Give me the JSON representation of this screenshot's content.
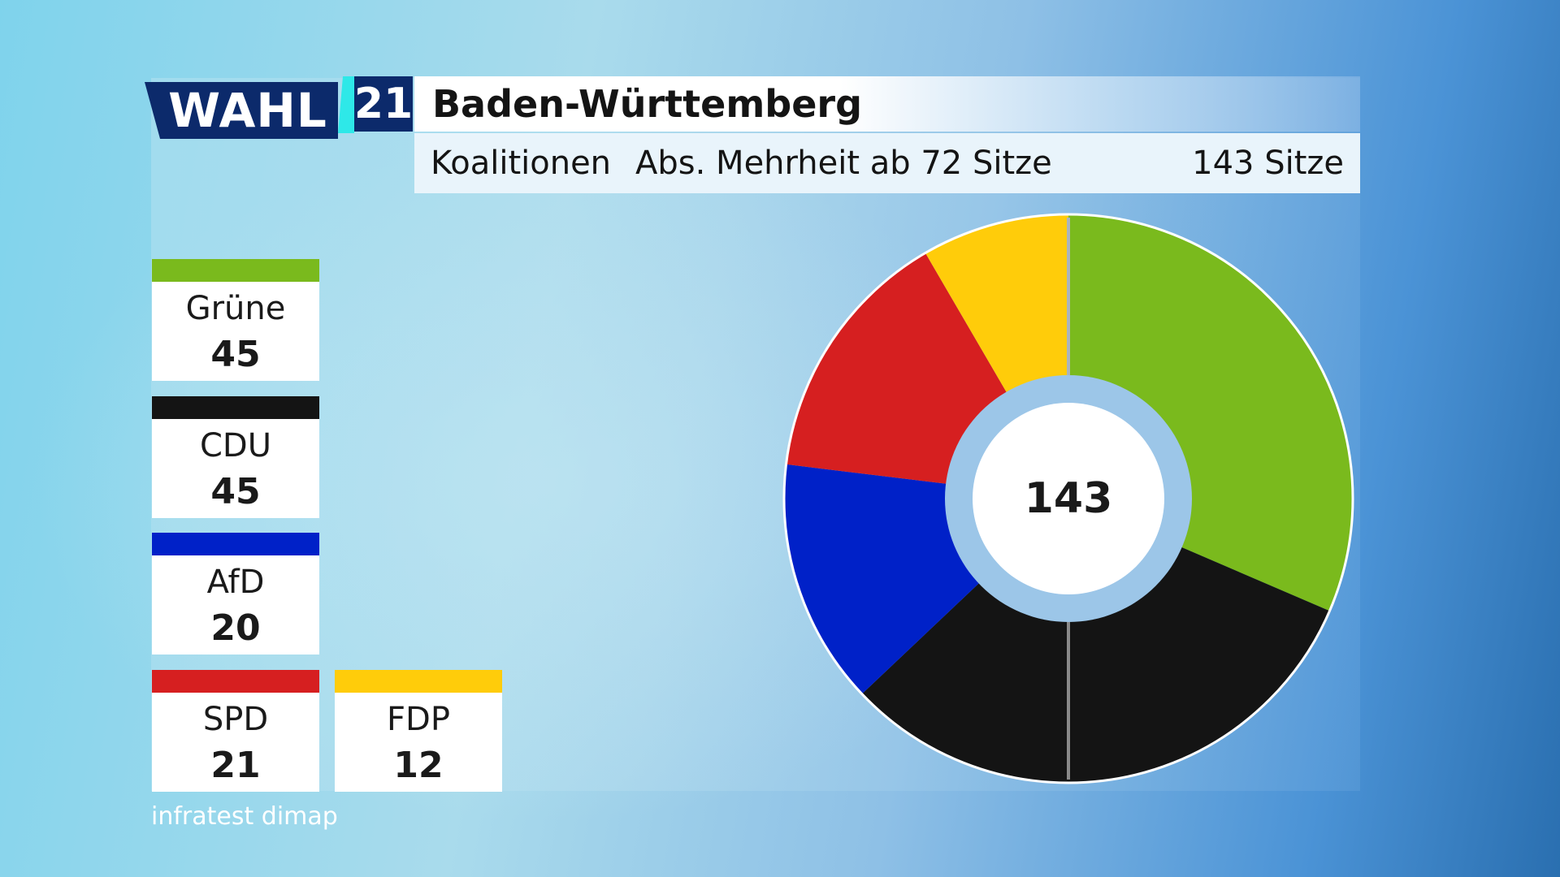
{
  "header": {
    "logo_text": "WAHL",
    "logo_year": "21",
    "title": "Baden-Württemberg",
    "subtitle_left": "Koalitionen",
    "subtitle_mid": "Abs. Mehrheit ab 72 Sitze",
    "subtitle_right": "143 Sitze"
  },
  "legend": [
    {
      "name": "Grüne",
      "seats": "45",
      "color": "#7aba1d"
    },
    {
      "name": "CDU",
      "seats": "45",
      "color": "#141414"
    },
    {
      "name": "AfD",
      "seats": "20",
      "color": "#0021c8"
    },
    {
      "name": "SPD",
      "seats": "21",
      "color": "#d61f20"
    },
    {
      "name": "FDP",
      "seats": "12",
      "color": "#ffcc0a"
    }
  ],
  "source": "infratest dimap",
  "chart_data": {
    "type": "pie",
    "variant": "donut",
    "total": 143,
    "center_label": "143",
    "majority_threshold": 72,
    "slices": [
      {
        "label": "Grüne",
        "value": 45,
        "color": "#7aba1d"
      },
      {
        "label": "CDU",
        "value": 45,
        "color": "#141414"
      },
      {
        "label": "AfD",
        "value": 20,
        "color": "#0021c8"
      },
      {
        "label": "SPD",
        "value": 21,
        "color": "#d61f20"
      },
      {
        "label": "FDP",
        "value": 12,
        "color": "#ffcc0a"
      }
    ]
  }
}
